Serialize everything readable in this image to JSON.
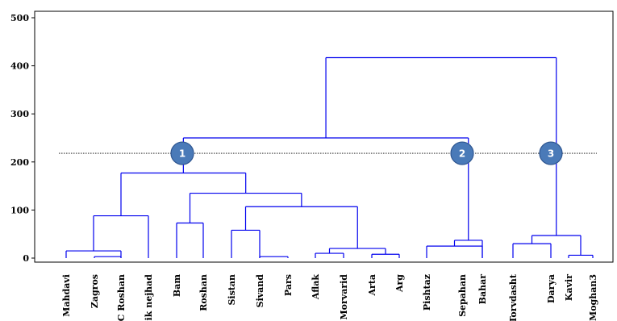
{
  "chart_data": {
    "type": "dendrogram",
    "ylim": [
      0,
      510
    ],
    "y_ticks": [
      0,
      100,
      200,
      300,
      400,
      500
    ],
    "leaves": [
      "Mahdavi",
      "Zagros",
      "C Roshan",
      "ik nejhad",
      "Bam",
      "Roshan",
      "Sistan",
      "Sivand",
      "Pars",
      "Aflak",
      "Morvarid",
      "Arta",
      "Arg",
      "Pishtaz",
      "Sepahan",
      "Bahar",
      "Torvdasht",
      "Darya",
      "Kavir",
      "Moghan3"
    ],
    "merges": [
      {
        "id": "m1",
        "left": "Mahdavi",
        "right": "C Roshan",
        "height": 15
      },
      {
        "id": "m2",
        "left": "Zagros",
        "right": "C Roshan",
        "height": 3
      },
      {
        "id": "m3",
        "left": "m1",
        "right": "ik nejhad",
        "height": 88
      },
      {
        "id": "m4",
        "left": "Bam",
        "right": "Roshan",
        "height": 73
      },
      {
        "id": "m5",
        "left": "Sistan",
        "right": "Sivand",
        "height": 58
      },
      {
        "id": "m6",
        "left": "Sivand",
        "right": "Pars",
        "height": 3
      },
      {
        "id": "m7",
        "left": "Aflak",
        "right": "Morvarid",
        "height": 10
      },
      {
        "id": "m8",
        "left": "Arta",
        "right": "Arg",
        "height": 8
      },
      {
        "id": "m9",
        "left": "m7",
        "right": "m8",
        "height": 20
      },
      {
        "id": "m10",
        "left": "m5",
        "right": "m9",
        "height": 107
      },
      {
        "id": "m11",
        "left": "m4",
        "right": "m10",
        "height": 135
      },
      {
        "id": "m12",
        "left": "m3",
        "right": "m11",
        "height": 177
      },
      {
        "id": "m13",
        "left": "Pishtaz",
        "right": "Bahar",
        "height": 25
      },
      {
        "id": "m14",
        "left": "m13",
        "right": "Bahar",
        "height": 37
      },
      {
        "id": "m15",
        "left": "Torvdasht",
        "right": "Darya",
        "height": 30
      },
      {
        "id": "m16",
        "left": "Kavir",
        "right": "Moghan3",
        "height": 6
      },
      {
        "id": "m17",
        "left": "m15",
        "right": "m16",
        "height": 47
      },
      {
        "id": "m18",
        "left": "m12",
        "right": "m14",
        "height": 250
      },
      {
        "id": "m19",
        "left": "m18",
        "right": "m17",
        "height": 417
      }
    ],
    "cut_height": 218,
    "cluster_markers": [
      "1",
      "2",
      "3"
    ],
    "colors": {
      "branch": "#0000ee",
      "marker_fill": "#4a7ab8",
      "marker_edge": "#2e5590",
      "cut_line": "#000000"
    }
  }
}
